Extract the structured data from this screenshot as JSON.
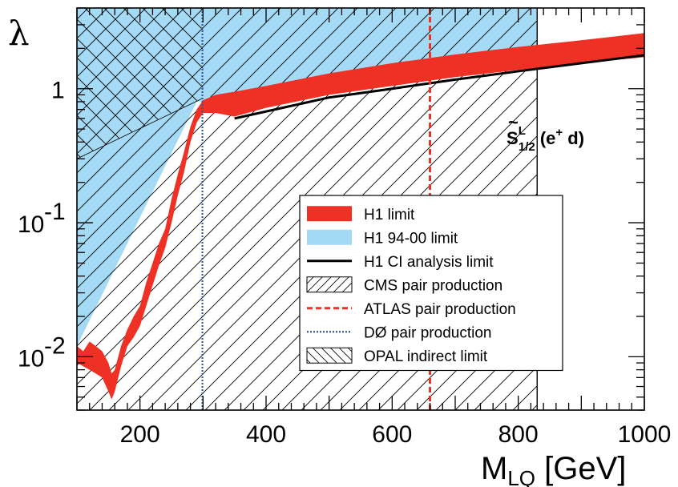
{
  "chart_data": {
    "type": "area",
    "ylabel": "λ",
    "xlabel": "M",
    "xlabel_sub": "LQ",
    "xlabel_unit": " [GeV]",
    "xlim": [
      100,
      1000
    ],
    "ylim": [
      0.004,
      4
    ],
    "yscale": "log",
    "xticks": [
      200,
      400,
      600,
      800,
      1000
    ],
    "yticks": [
      {
        "value": 0.01,
        "base": "10",
        "exp": "-2"
      },
      {
        "value": 0.1,
        "base": "10",
        "exp": "-1"
      },
      {
        "value": 1,
        "base": "1",
        "exp": ""
      }
    ],
    "annotation": {
      "main": "S",
      "tilde": "~",
      "sup": "L",
      "sub": "1/2",
      "rest": " (e",
      "charge": "+",
      "tail": " d)"
    },
    "legend": [
      {
        "label": "H1 limit",
        "style": "red-band"
      },
      {
        "label": "H1 94-00 limit",
        "style": "blue-band"
      },
      {
        "label": "H1 CI analysis limit",
        "style": "black-line"
      },
      {
        "label": "CMS pair production",
        "style": "hatch-forward"
      },
      {
        "label": "ATLAS pair production",
        "style": "red-dashed"
      },
      {
        "label": "DØ pair production",
        "style": "blue-dotted"
      },
      {
        "label": "OPAL indirect limit",
        "style": "hatch-back"
      }
    ],
    "series": [
      {
        "name": "H1 limit",
        "color": "#ee3124",
        "x": [
          100,
          110,
          120,
          130,
          140,
          150,
          155,
          160,
          170,
          180,
          190,
          200,
          210,
          220,
          230,
          240,
          250,
          260,
          270,
          280,
          290,
          300,
          320,
          350,
          400,
          500,
          600,
          700,
          800,
          900,
          1000
        ],
        "upper": [
          0.012,
          0.011,
          0.013,
          0.012,
          0.011,
          0.009,
          0.0075,
          0.008,
          0.012,
          0.016,
          0.02,
          0.024,
          0.036,
          0.05,
          0.07,
          0.09,
          0.15,
          0.23,
          0.34,
          0.52,
          0.7,
          0.82,
          0.9,
          0.95,
          1.05,
          1.3,
          1.55,
          1.8,
          2.05,
          2.3,
          2.6
        ],
        "lower": [
          0.009,
          0.0085,
          0.008,
          0.0075,
          0.007,
          0.0055,
          0.0048,
          0.0055,
          0.0085,
          0.012,
          0.014,
          0.017,
          0.024,
          0.034,
          0.048,
          0.065,
          0.1,
          0.16,
          0.24,
          0.4,
          0.56,
          0.66,
          0.66,
          0.62,
          0.72,
          0.9,
          1.05,
          1.22,
          1.38,
          1.55,
          1.72
        ]
      },
      {
        "name": "H1 94-00 limit",
        "color": "#a4daf3",
        "x": [
          100,
          290,
          830,
          830,
          1000
        ],
        "y": [
          0.012,
          0.8,
          1.45,
          4,
          4
        ]
      },
      {
        "name": "H1 CI analysis limit",
        "color": "#000000",
        "x": [
          350,
          500,
          600,
          700,
          800,
          900,
          1000
        ],
        "y": [
          0.6,
          0.86,
          1.0,
          1.17,
          1.35,
          1.55,
          1.78
        ]
      },
      {
        "name": "CMS pair production",
        "x_max": 830
      },
      {
        "name": "ATLAS pair production",
        "color": "#ee3124",
        "x": 660
      },
      {
        "name": "DØ pair production",
        "color": "#2c58a8",
        "x": 299
      },
      {
        "name": "OPAL indirect limit",
        "x_max": 300,
        "y_at_xmin": 0.3,
        "y_at_xmax": 0.85
      }
    ]
  }
}
